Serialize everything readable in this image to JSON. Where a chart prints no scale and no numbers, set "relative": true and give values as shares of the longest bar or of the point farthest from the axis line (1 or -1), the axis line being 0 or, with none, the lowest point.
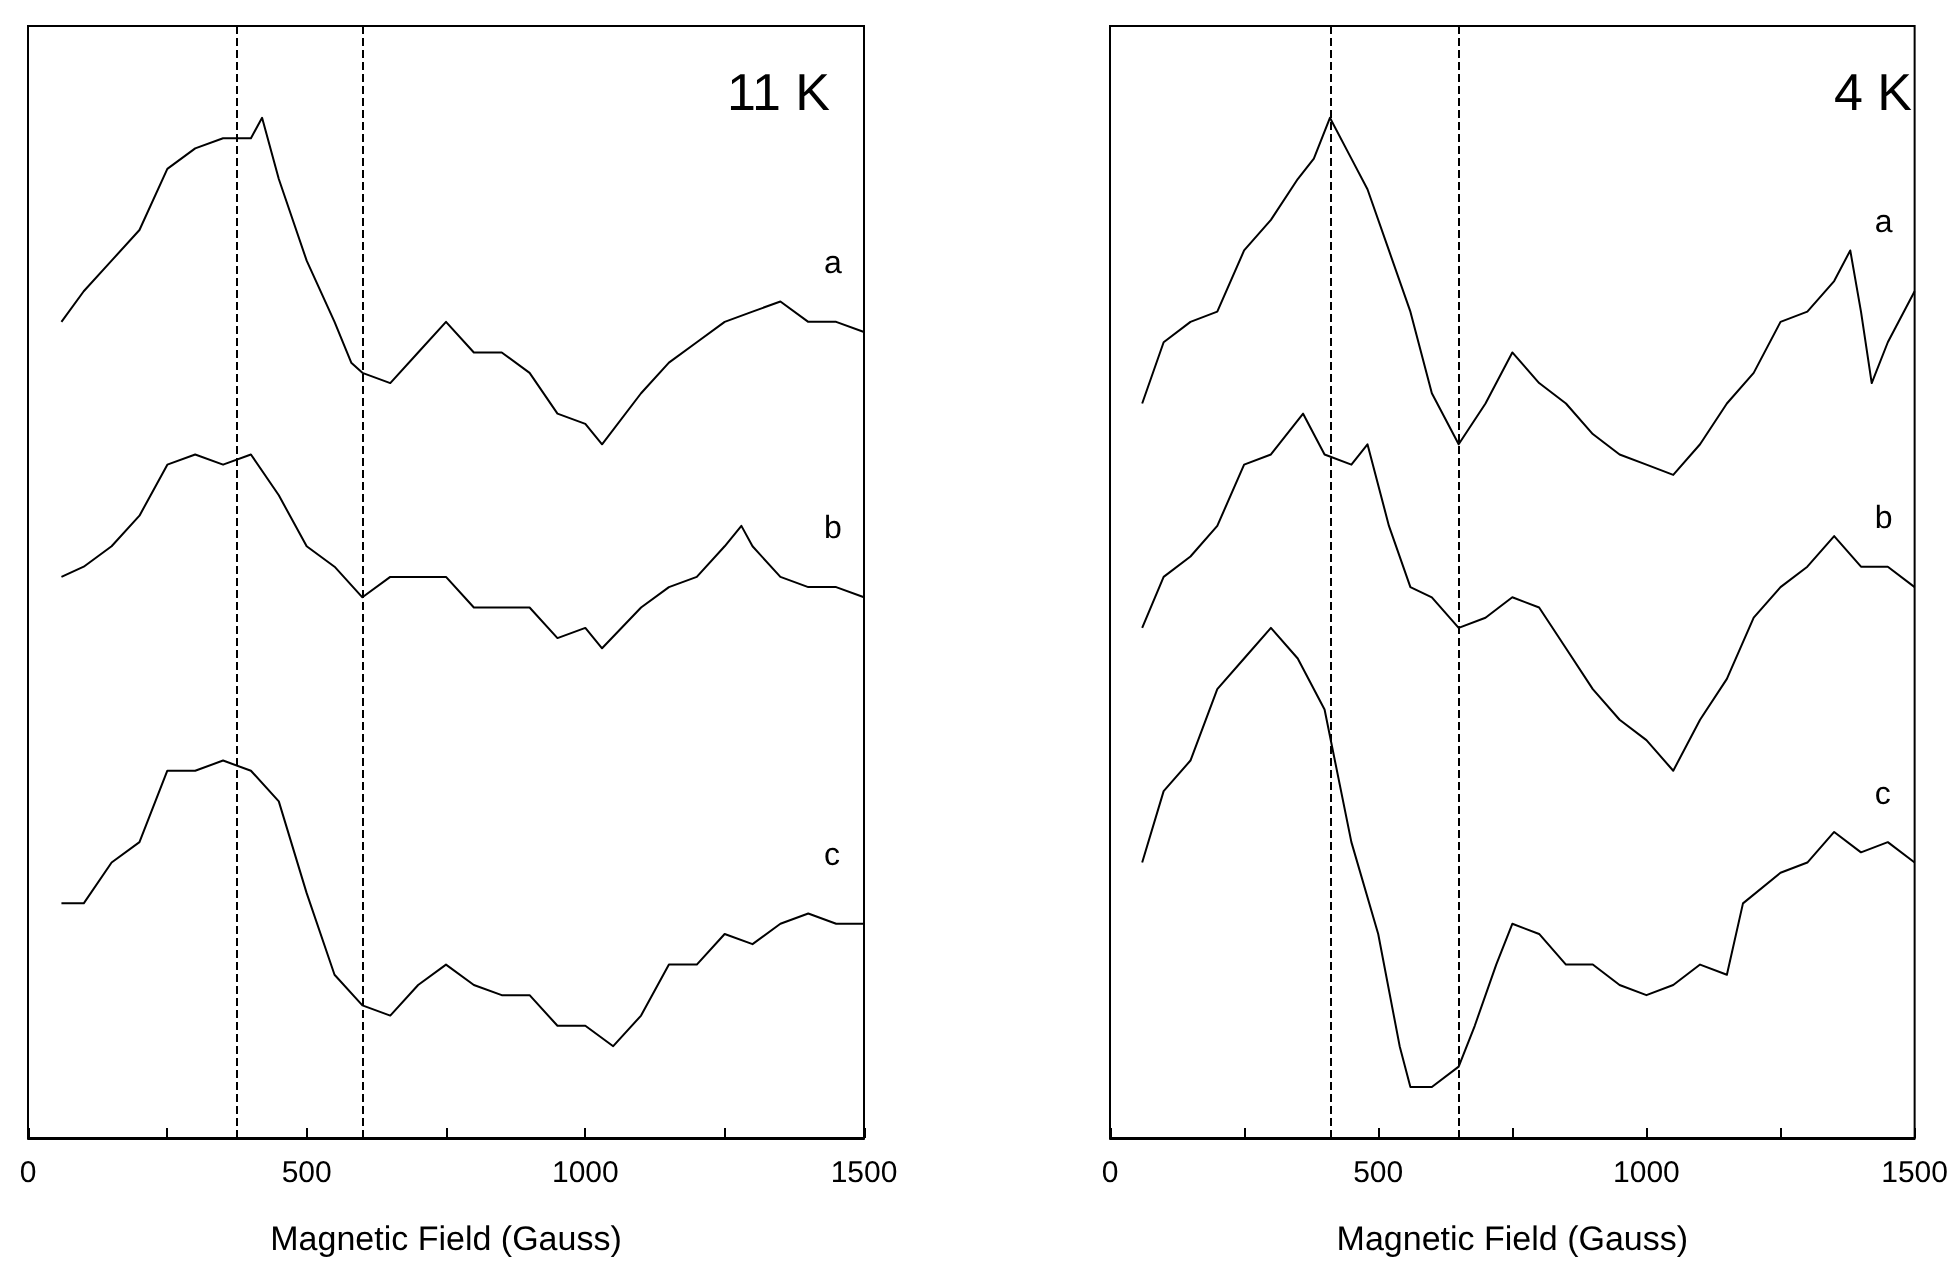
{
  "chart_data": [
    {
      "type": "line",
      "title": "11 K",
      "xlabel": "Magnetic Field (Gauss)",
      "relative": true,
      "legend": false,
      "grid": false,
      "marker": "none",
      "xlim": [
        0,
        1500
      ],
      "xticks": [
        0,
        {
          "value": 250,
          "label": null
        },
        500,
        {
          "value": 750,
          "label": null
        },
        1000,
        {
          "value": 1250,
          "label": null
        },
        1500
      ],
      "ref_lines": [
        {
          "axis": "x",
          "value": 375,
          "line_style": "dashed",
          "color": "#000000"
        },
        {
          "axis": "x",
          "value": 600,
          "line_style": "dashed",
          "color": "#000000"
        }
      ],
      "series": [
        {
          "name": "a",
          "color": "#000000",
          "x": [
            60,
            100,
            150,
            200,
            250,
            300,
            350,
            400,
            420,
            450,
            500,
            550,
            580,
            600,
            650,
            700,
            750,
            800,
            850,
            900,
            950,
            1000,
            1030,
            1100,
            1150,
            1200,
            1250,
            1300,
            1350,
            1400,
            1450,
            1500
          ],
          "values": [
            0.8,
            0.83,
            0.86,
            0.89,
            0.95,
            0.97,
            0.98,
            0.98,
            1,
            0.94,
            0.86,
            0.8,
            0.76,
            0.75,
            0.74,
            0.77,
            0.8,
            0.77,
            0.77,
            0.75,
            0.71,
            0.7,
            0.68,
            0.73,
            0.76,
            0.78,
            0.8,
            0.81,
            0.82,
            0.8,
            0.8,
            0.79
          ]
        },
        {
          "name": "b",
          "color": "#000000",
          "x": [
            60,
            100,
            150,
            200,
            250,
            300,
            350,
            400,
            450,
            500,
            550,
            600,
            650,
            700,
            750,
            800,
            850,
            900,
            950,
            1000,
            1030,
            1100,
            1150,
            1200,
            1250,
            1280,
            1300,
            1350,
            1400,
            1450,
            1500
          ],
          "values": [
            0.55,
            0.56,
            0.58,
            0.61,
            0.66,
            0.67,
            0.66,
            0.67,
            0.63,
            0.58,
            0.56,
            0.53,
            0.55,
            0.55,
            0.55,
            0.52,
            0.52,
            0.52,
            0.49,
            0.5,
            0.48,
            0.52,
            0.54,
            0.55,
            0.58,
            0.6,
            0.58,
            0.55,
            0.54,
            0.54,
            0.53
          ]
        },
        {
          "name": "c",
          "color": "#000000",
          "x": [
            60,
            100,
            150,
            200,
            250,
            300,
            350,
            400,
            450,
            500,
            550,
            600,
            650,
            700,
            750,
            800,
            850,
            900,
            950,
            1000,
            1050,
            1100,
            1150,
            1200,
            1250,
            1300,
            1350,
            1400,
            1450,
            1500
          ],
          "values": [
            0.23,
            0.23,
            0.27,
            0.29,
            0.36,
            0.36,
            0.37,
            0.36,
            0.33,
            0.24,
            0.16,
            0.13,
            0.12,
            0.15,
            0.17,
            0.15,
            0.14,
            0.14,
            0.11,
            0.11,
            0.09,
            0.12,
            0.17,
            0.17,
            0.2,
            0.19,
            0.21,
            0.22,
            0.21,
            0.21
          ]
        }
      ]
    },
    {
      "type": "line",
      "title": "4 K",
      "xlabel": "Magnetic Field (Gauss)",
      "relative": true,
      "legend": false,
      "grid": false,
      "marker": "none",
      "xlim": [
        0,
        1500
      ],
      "xticks": [
        0,
        {
          "value": 250,
          "label": null
        },
        500,
        {
          "value": 750,
          "label": null
        },
        1000,
        {
          "value": 1250,
          "label": null
        },
        1500
      ],
      "ref_lines": [
        {
          "axis": "x",
          "value": 410,
          "line_style": "dashed",
          "color": "#000000"
        },
        {
          "axis": "x",
          "value": 650,
          "line_style": "dashed",
          "color": "#000000"
        }
      ],
      "series": [
        {
          "name": "a",
          "color": "#000000",
          "x": [
            60,
            100,
            150,
            200,
            250,
            300,
            350,
            380,
            410,
            450,
            480,
            520,
            560,
            600,
            650,
            700,
            750,
            800,
            850,
            900,
            950,
            1000,
            1050,
            1100,
            1150,
            1200,
            1250,
            1300,
            1350,
            1380,
            1400,
            1420,
            1450,
            1500
          ],
          "values": [
            0.72,
            0.78,
            0.8,
            0.81,
            0.87,
            0.9,
            0.94,
            0.96,
            1,
            0.96,
            0.93,
            0.87,
            0.81,
            0.73,
            0.68,
            0.72,
            0.77,
            0.74,
            0.72,
            0.69,
            0.67,
            0.66,
            0.65,
            0.68,
            0.72,
            0.75,
            0.8,
            0.81,
            0.84,
            0.87,
            0.81,
            0.74,
            0.78,
            0.83
          ]
        },
        {
          "name": "b",
          "color": "#000000",
          "x": [
            60,
            100,
            150,
            200,
            250,
            300,
            360,
            400,
            450,
            480,
            520,
            560,
            600,
            650,
            700,
            750,
            800,
            850,
            900,
            950,
            1000,
            1050,
            1100,
            1150,
            1200,
            1250,
            1300,
            1350,
            1400,
            1450,
            1500
          ],
          "values": [
            0.5,
            0.55,
            0.57,
            0.6,
            0.66,
            0.67,
            0.71,
            0.67,
            0.66,
            0.68,
            0.6,
            0.54,
            0.53,
            0.5,
            0.51,
            0.53,
            0.52,
            0.48,
            0.44,
            0.41,
            0.39,
            0.36,
            0.41,
            0.45,
            0.51,
            0.54,
            0.56,
            0.59,
            0.56,
            0.56,
            0.54
          ]
        },
        {
          "name": "c",
          "color": "#000000",
          "x": [
            60,
            100,
            150,
            200,
            250,
            300,
            350,
            400,
            450,
            500,
            540,
            560,
            600,
            650,
            680,
            720,
            750,
            800,
            850,
            900,
            950,
            1000,
            1050,
            1100,
            1150,
            1180,
            1250,
            1300,
            1350,
            1400,
            1450,
            1500
          ],
          "values": [
            0.27,
            0.34,
            0.37,
            0.44,
            0.47,
            0.5,
            0.47,
            0.42,
            0.29,
            0.2,
            0.09,
            0.05,
            0.05,
            0.07,
            0.11,
            0.17,
            0.21,
            0.2,
            0.17,
            0.17,
            0.15,
            0.14,
            0.15,
            0.17,
            0.16,
            0.23,
            0.26,
            0.27,
            0.3,
            0.28,
            0.29,
            0.27
          ]
        }
      ]
    }
  ]
}
